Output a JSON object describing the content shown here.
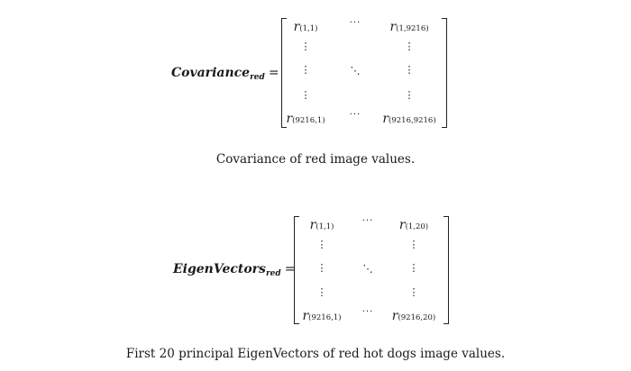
{
  "equations": [
    {
      "label_main": "Covariance",
      "label_sub": "red",
      "equals": "=",
      "top_left": "r",
      "top_left_sub": "(1,1)",
      "top_right": "r",
      "top_right_sub": "(1,9216)",
      "bottom_left": "r",
      "bottom_left_sub": "(9216,1)",
      "bottom_right": "r",
      "bottom_right_sub": "(9216,9216)",
      "hdots": "···",
      "vdots": "⋮",
      "ddots": "⋱",
      "caption": "Covariance of red image values."
    },
    {
      "label_main": "EigenVectors",
      "label_sub": "red",
      "equals": "=",
      "top_left": "r",
      "top_left_sub": "(1,1)",
      "top_right": "r",
      "top_right_sub": "(1,20)",
      "bottom_left": "r",
      "bottom_left_sub": "(9216,1)",
      "bottom_right": "r",
      "bottom_right_sub": "(9216,20)",
      "hdots": "···",
      "vdots": "⋮",
      "ddots": "⋱",
      "caption": "First 20 principal EigenVectors of red hot dogs image values."
    }
  ]
}
